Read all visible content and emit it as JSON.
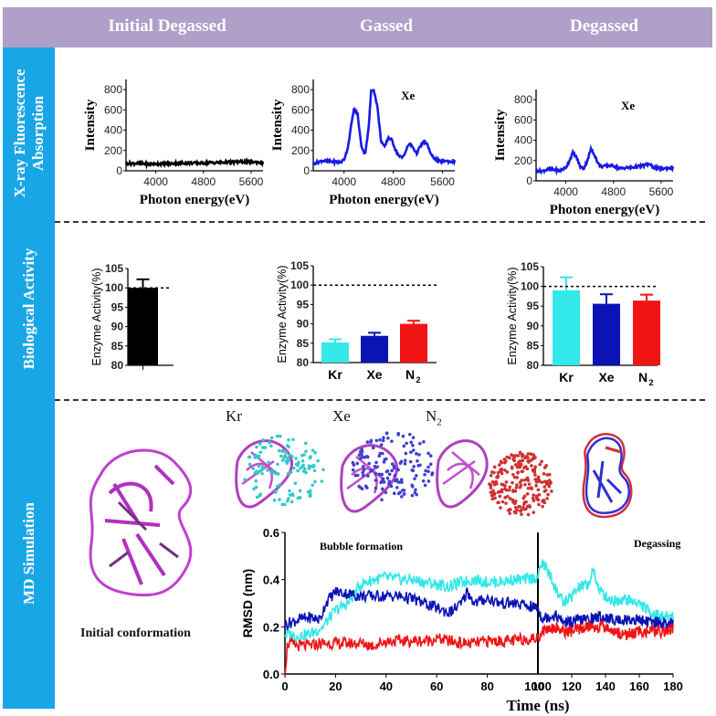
{
  "header": {
    "columns": [
      "Initial Degassed",
      "Gassed",
      "Degassed"
    ]
  },
  "sidebar": {
    "rows": [
      {
        "label_line1": "X-ray Fluorescence",
        "label_line2": "Absorption"
      },
      {
        "label_line1": "Biological Activity",
        "label_line2": ""
      },
      {
        "label_line1": "MD Simulation",
        "label_line2": ""
      }
    ]
  },
  "colors": {
    "header_bg": "#b09fc8",
    "sidebar_bg": "#19a6e6",
    "kr": "#33e8e8",
    "xe": "#0a14b4",
    "n2": "#f01414",
    "spectrum": "#1a1ae6",
    "black": "#000000"
  },
  "md": {
    "molecule_labels": [
      "Kr",
      "Xe",
      "N2"
    ],
    "initial_caption": "Initial conformation"
  },
  "chart_data": [
    {
      "id": "xrf-initial",
      "type": "line",
      "title": "",
      "annotation": "",
      "xlabel": "Photon energy(eV)",
      "ylabel": "Intensity",
      "xlim": [
        3500,
        5800
      ],
      "ylim": [
        0,
        900
      ],
      "xticks": [
        4000,
        4800,
        5600
      ],
      "yticks": [
        0,
        200,
        400,
        600,
        800
      ],
      "color": "#000000",
      "series": [
        {
          "name": "Initial Degassed",
          "x": [
            3500,
            3700,
            3900,
            4100,
            4300,
            4500,
            4700,
            4900,
            5100,
            5300,
            5500,
            5700,
            5800
          ],
          "y": [
            70,
            75,
            65,
            70,
            72,
            78,
            75,
            80,
            82,
            85,
            90,
            85,
            80
          ]
        }
      ]
    },
    {
      "id": "xrf-gassed",
      "type": "line",
      "title": "",
      "annotation": "Xe",
      "xlabel": "Photon energy(eV)",
      "ylabel": "Intensity",
      "xlim": [
        3500,
        5800
      ],
      "ylim": [
        0,
        900
      ],
      "xticks": [
        4000,
        4800,
        5600
      ],
      "yticks": [
        0,
        200,
        400,
        600,
        800
      ],
      "color": "#1a1ae6",
      "series": [
        {
          "name": "Xe",
          "x": [
            3500,
            3650,
            3800,
            3950,
            4000,
            4060,
            4120,
            4160,
            4220,
            4280,
            4340,
            4400,
            4440,
            4480,
            4540,
            4600,
            4660,
            4720,
            4780,
            4840,
            4900,
            4950,
            5000,
            5060,
            5120,
            5180,
            5240,
            5300,
            5360,
            5420,
            5480,
            5560,
            5640,
            5720,
            5800
          ],
          "y": [
            70,
            100,
            90,
            85,
            110,
            220,
            460,
            610,
            560,
            250,
            160,
            420,
            780,
            810,
            640,
            300,
            230,
            330,
            300,
            200,
            140,
            130,
            190,
            270,
            230,
            170,
            240,
            290,
            250,
            150,
            120,
            90,
            100,
            90,
            95
          ]
        }
      ]
    },
    {
      "id": "xrf-degassed",
      "type": "line",
      "title": "",
      "annotation": "Xe",
      "xlabel": "Photon energy(eV)",
      "ylabel": "Intensity",
      "xlim": [
        3500,
        5800
      ],
      "ylim": [
        0,
        900
      ],
      "xticks": [
        4000,
        4800,
        5600
      ],
      "yticks": [
        0,
        200,
        400,
        600,
        800
      ],
      "color": "#1a1ae6",
      "series": [
        {
          "name": "Xe",
          "x": [
            3500,
            3600,
            3700,
            3800,
            3900,
            4000,
            4060,
            4120,
            4180,
            4240,
            4300,
            4360,
            4420,
            4480,
            4540,
            4600,
            4700,
            4800,
            4900,
            5000,
            5100,
            5200,
            5300,
            5400,
            5450,
            5500,
            5600,
            5700,
            5800
          ],
          "y": [
            100,
            95,
            115,
            110,
            100,
            130,
            200,
            280,
            230,
            140,
            120,
            200,
            310,
            260,
            170,
            140,
            150,
            150,
            120,
            130,
            130,
            140,
            150,
            165,
            140,
            130,
            120,
            125,
            130
          ]
        }
      ]
    },
    {
      "id": "activity-initial",
      "type": "bar",
      "title": "",
      "xlabel": "",
      "ylabel": "Enzyme Activity(%)",
      "ylim": [
        80,
        105
      ],
      "yticks": [
        80,
        85,
        90,
        95,
        100,
        105
      ],
      "reference_line": 100,
      "categories": [
        ""
      ],
      "values": [
        100
      ],
      "errors": [
        2.2
      ],
      "colors": [
        "#000000"
      ]
    },
    {
      "id": "activity-gassed",
      "type": "bar",
      "title": "",
      "xlabel": "",
      "ylabel": "Enzyme Activity(%)",
      "ylim": [
        80,
        105
      ],
      "yticks": [
        80,
        85,
        90,
        95,
        100,
        105
      ],
      "reference_line": 100,
      "categories": [
        "Kr",
        "Xe",
        "N2"
      ],
      "values": [
        85.2,
        86.9,
        90.0
      ],
      "errors": [
        0.8,
        0.8,
        0.8
      ],
      "colors": [
        "#33e8e8",
        "#0a14b4",
        "#f01414"
      ]
    },
    {
      "id": "activity-degassed",
      "type": "bar",
      "title": "",
      "xlabel": "",
      "ylabel": "Enzyme Activity(%)",
      "ylim": [
        80,
        105
      ],
      "yticks": [
        80,
        85,
        90,
        95,
        100,
        105
      ],
      "reference_line": 100,
      "categories": [
        "Kr",
        "Xe",
        "N2"
      ],
      "values": [
        99.0,
        95.6,
        96.4
      ],
      "errors": [
        3.3,
        2.4,
        1.5
      ],
      "colors": [
        "#33e8e8",
        "#0a14b4",
        "#f01414"
      ]
    },
    {
      "id": "rmsd",
      "type": "line",
      "title": "",
      "annotations": [
        "Bubble formation",
        "Degassing"
      ],
      "xlabel": "Time (ns)",
      "ylabel": "RMSD (nm)",
      "xlim": [
        0,
        180
      ],
      "ylim": [
        0,
        0.6
      ],
      "xticks": [
        0,
        20,
        40,
        60,
        80,
        100,
        100,
        120,
        140,
        160,
        180
      ],
      "yticks": [
        0.0,
        0.2,
        0.4,
        0.6
      ],
      "phase_boundary": 100,
      "series": [
        {
          "name": "Kr",
          "color": "#33e8e8",
          "x": [
            0,
            5,
            10,
            15,
            20,
            25,
            30,
            35,
            40,
            45,
            50,
            55,
            60,
            65,
            70,
            75,
            80,
            85,
            90,
            95,
            100,
            102,
            105,
            110,
            115,
            120,
            125,
            130,
            133,
            136,
            140,
            145,
            150,
            155,
            160,
            165,
            170,
            175,
            180
          ],
          "y": [
            0.17,
            0.16,
            0.17,
            0.2,
            0.27,
            0.3,
            0.38,
            0.4,
            0.41,
            0.4,
            0.4,
            0.39,
            0.38,
            0.37,
            0.39,
            0.4,
            0.39,
            0.39,
            0.4,
            0.4,
            0.41,
            0.47,
            0.45,
            0.37,
            0.3,
            0.33,
            0.37,
            0.38,
            0.44,
            0.36,
            0.33,
            0.31,
            0.32,
            0.31,
            0.3,
            0.27,
            0.25,
            0.24,
            0.25
          ]
        },
        {
          "name": "Xe",
          "color": "#0a14b4",
          "x": [
            0,
            5,
            10,
            14,
            16,
            20,
            25,
            30,
            35,
            40,
            45,
            50,
            55,
            60,
            65,
            70,
            72,
            75,
            80,
            85,
            90,
            95,
            100,
            102,
            105,
            110,
            115,
            120,
            125,
            130,
            135,
            140,
            145,
            150,
            155,
            160,
            165,
            170,
            175,
            180
          ],
          "y": [
            0.21,
            0.23,
            0.24,
            0.23,
            0.3,
            0.35,
            0.34,
            0.33,
            0.33,
            0.33,
            0.33,
            0.32,
            0.3,
            0.28,
            0.26,
            0.3,
            0.35,
            0.3,
            0.32,
            0.3,
            0.3,
            0.29,
            0.28,
            0.24,
            0.24,
            0.25,
            0.22,
            0.22,
            0.23,
            0.23,
            0.24,
            0.24,
            0.23,
            0.23,
            0.23,
            0.23,
            0.22,
            0.22,
            0.21,
            0.21
          ]
        },
        {
          "name": "N2",
          "color": "#f01414",
          "x": [
            0,
            1,
            5,
            10,
            15,
            20,
            25,
            30,
            35,
            40,
            45,
            50,
            55,
            60,
            65,
            70,
            75,
            80,
            85,
            90,
            95,
            100,
            102,
            105,
            110,
            115,
            120,
            125,
            130,
            135,
            140,
            145,
            150,
            155,
            160,
            165,
            170,
            175,
            180
          ],
          "y": [
            0.0,
            0.13,
            0.12,
            0.12,
            0.13,
            0.13,
            0.13,
            0.13,
            0.12,
            0.14,
            0.14,
            0.14,
            0.14,
            0.15,
            0.14,
            0.13,
            0.13,
            0.14,
            0.14,
            0.14,
            0.15,
            0.15,
            0.18,
            0.19,
            0.2,
            0.18,
            0.18,
            0.19,
            0.2,
            0.2,
            0.2,
            0.18,
            0.17,
            0.17,
            0.18,
            0.18,
            0.18,
            0.18,
            0.19
          ]
        }
      ]
    }
  ]
}
